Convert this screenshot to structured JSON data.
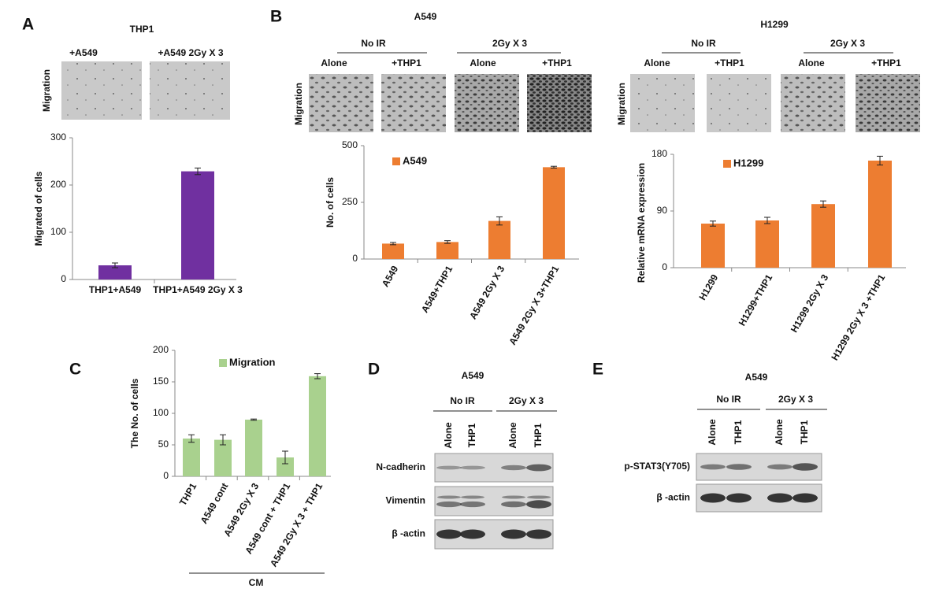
{
  "panel_labels": [
    "A",
    "B",
    "C",
    "D",
    "E"
  ],
  "panel_a": {
    "title": "THP1",
    "image_labels": [
      "+A549",
      "+A549 2Gy X 3"
    ],
    "row_label": "Migration"
  },
  "panel_b": [
    {
      "title": "A549",
      "groups": [
        "No IR",
        "2Gy X 3"
      ],
      "lanes": [
        "Alone",
        "+THP1",
        "Alone",
        "+THP1"
      ],
      "row_label": "Migration"
    },
    {
      "title": "H1299",
      "groups": [
        "No IR",
        "2Gy X 3"
      ],
      "lanes": [
        "Alone",
        "+THP1",
        "Alone",
        "+THP1"
      ],
      "row_label": "Migration"
    }
  ],
  "chart_data": [
    {
      "type": "bar",
      "y_label": "Migrated of   cells",
      "categories": [
        "THP1+A549",
        "THP1+A549 2Gy X 3"
      ],
      "values": [
        30,
        229
      ],
      "errors": [
        5,
        7
      ],
      "color": "#7030a0",
      "ylim": [
        0,
        300
      ],
      "yticks": [
        0,
        100,
        200,
        300
      ]
    },
    {
      "type": "bar",
      "y_label": "No. of cells",
      "categories": [
        "A549",
        "A549+THP1",
        "A549 2Gy X 3",
        "A549 2Gy X 3+THP1"
      ],
      "series": [
        {
          "name": "A549",
          "color": "#ed7d31",
          "values": [
            68,
            75,
            168,
            405
          ],
          "errors": [
            5,
            6,
            18,
            4
          ]
        }
      ],
      "ylim": [
        0,
        500
      ],
      "yticks": [
        0,
        250,
        500
      ]
    },
    {
      "type": "bar",
      "y_label": "Relative mRNA expression",
      "categories": [
        "H1299",
        "H1299+THP1",
        "H1299 2Gy X 3",
        "H1299 2Gy X 3 +THP1"
      ],
      "series": [
        {
          "name": "H1299",
          "color": "#ed7d31",
          "values": [
            70,
            75,
            101,
            170
          ],
          "errors": [
            4,
            5,
            5,
            7
          ]
        }
      ],
      "ylim": [
        0,
        180
      ],
      "yticks": [
        0,
        90,
        180
      ]
    },
    {
      "type": "bar",
      "y_label": "The No. of cells",
      "categories": [
        "THP1",
        "A549 cont",
        "A549 2Gy X 3",
        "A549 cont + THP1",
        "A549 2Gy X 3 + THP1"
      ],
      "series": [
        {
          "name": "Migration",
          "color": "#a9d18e",
          "values": [
            60,
            58,
            90,
            30,
            159
          ],
          "errors": [
            6,
            8,
            1,
            10,
            4
          ]
        }
      ],
      "ylim": [
        0,
        200
      ],
      "yticks": [
        0,
        50,
        100,
        150,
        200
      ]
    }
  ],
  "panel_c": {
    "group_label": "CM"
  },
  "panel_d": {
    "title": "A549",
    "groups": [
      "No IR",
      "2Gy X 3"
    ],
    "lanes": [
      "Alone",
      "THP1",
      "Alone",
      "THP1"
    ],
    "blots": [
      "N-cadherin",
      "Vimentin",
      "β -actin"
    ]
  },
  "panel_e": {
    "title": "A549",
    "groups": [
      "No IR",
      "2Gy X 3"
    ],
    "lanes": [
      "Alone",
      "THP1",
      "Alone",
      "THP1"
    ],
    "blots": [
      "p-STAT3(Y705)",
      "β -actin"
    ]
  }
}
